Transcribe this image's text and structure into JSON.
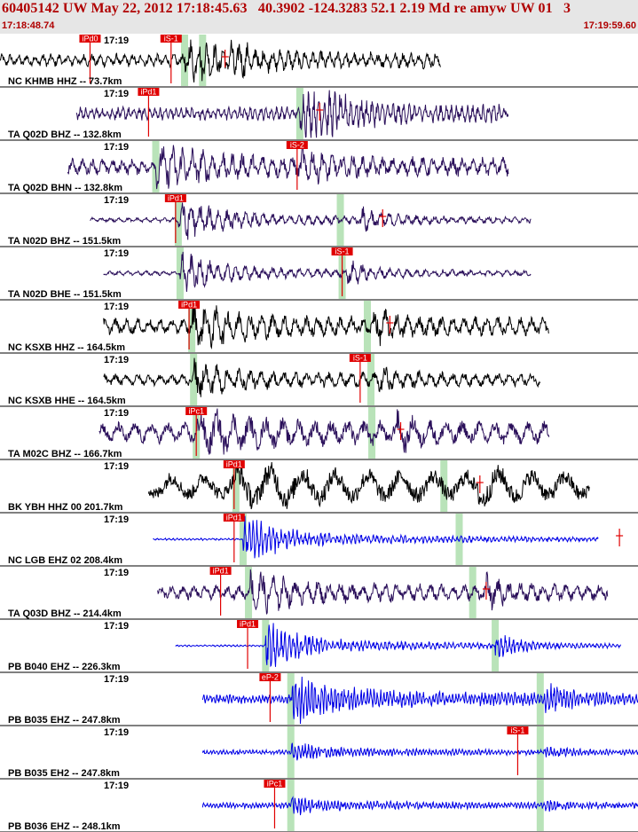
{
  "header": {
    "title": "60405142 UW May 22, 2012 17:18:45.63   40.3902 -124.3283 52.1 2.19 Md re amyw UW 01   3",
    "time_start": "17:18:48.74",
    "time_end": "17:19:59.60"
  },
  "colors": {
    "header_bg": "#e6e6e6",
    "header_text": "#b00000",
    "pick_box": "#e00000",
    "pick_line": "#e00000",
    "shade": "#b9e3b9",
    "trace_black": "#000000",
    "trace_purple": "#2a0f5a",
    "trace_blue": "#0000e6"
  },
  "chart_data": {
    "type": "line",
    "x_range_seconds": [
      0,
      70.86
    ],
    "traces": [
      {
        "label": "NC KHMB HHZ -- 73.7km",
        "minute": "17:19",
        "color": "black",
        "start": 0.0,
        "end": 49.0,
        "amp": 0.28,
        "freq": 2.2,
        "sig_amp": 0.8,
        "burst2": 25.5,
        "pick": {
          "text": "iPd0",
          "x": 10.0
        },
        "pick2": {
          "text": "iS-1",
          "x": 19.0
        },
        "shade_x": 20.5,
        "shade2_x": 22.5,
        "tick_x": 25.0,
        "tick_dir": "right"
      },
      {
        "label": "TA Q02D BHZ -- 132.8km",
        "minute": "17:19",
        "color": "purple",
        "start": 8.5,
        "end": 56.5,
        "amp": 0.3,
        "freq": 3.4,
        "sig_amp": 0.9,
        "burst2": 35.0,
        "pick": {
          "text": "iPd1",
          "x": 16.5
        },
        "pick2": null,
        "shade_x": 33.3,
        "shade2_x": null,
        "tick_x": 35.5,
        "tick_dir": "up"
      },
      {
        "label": "TA Q02D BHN -- 132.8km",
        "minute": "17:19",
        "color": "purple",
        "start": 7.5,
        "end": 56.5,
        "amp": 0.35,
        "freq": 1.8,
        "sig_amp": 0.95,
        "burst2": 33.5,
        "pick": {
          "text": "iS-2",
          "x": 33.0
        },
        "pick2": null,
        "shade_x": 17.3,
        "shade2_x": null,
        "tick_x": null,
        "tick_dir": null
      },
      {
        "label": "TA N02D BHZ -- 151.5km",
        "minute": "17:19",
        "color": "purple",
        "start": 10.0,
        "end": 59.0,
        "amp": 0.1,
        "freq": 2.0,
        "sig_amp": 0.85,
        "burst2": 40.0,
        "pick": {
          "text": "iPd1",
          "x": 19.5
        },
        "pick2": null,
        "shade_x": 19.8,
        "shade2_x": 37.8,
        "tick_x": 42.5,
        "tick_dir": "up"
      },
      {
        "label": "TA N02D BHE -- 151.5km",
        "minute": "17:19",
        "color": "purple",
        "start": 11.5,
        "end": 59.0,
        "amp": 0.1,
        "freq": 2.0,
        "sig_amp": 0.75,
        "burst2": 38.5,
        "pick": {
          "text": "iS-1",
          "x": 38.0
        },
        "pick2": null,
        "shade_x": 20.0,
        "shade2_x": 38.0,
        "tick_x": null,
        "tick_dir": null
      },
      {
        "label": "NC KSXB HHZ -- 164.5km",
        "minute": "17:19",
        "color": "black",
        "start": 11.5,
        "end": 61.0,
        "amp": 0.35,
        "freq": 1.6,
        "sig_amp": 0.8,
        "burst2": 41.5,
        "pick": {
          "text": "iPd1",
          "x": 21.0
        },
        "pick2": null,
        "shade_x": 21.3,
        "shade2_x": 40.8,
        "tick_x": 43.3,
        "tick_dir": "up"
      },
      {
        "label": "NC KSXB HHE -- 164.5km",
        "minute": "17:19",
        "color": "black",
        "start": 11.5,
        "end": 60.0,
        "amp": 0.25,
        "freq": 1.6,
        "sig_amp": 0.6,
        "burst2": 42.0,
        "pick": {
          "text": "iS-1",
          "x": 40.0
        },
        "pick2": null,
        "shade_x": 21.5,
        "shade2_x": 41.2,
        "tick_x": null,
        "tick_dir": null
      },
      {
        "label": "TA M02C BHZ -- 166.7km",
        "minute": "17:19",
        "color": "purple",
        "start": 11.0,
        "end": 61.0,
        "amp": 0.45,
        "freq": 1.1,
        "sig_amp": 0.8,
        "burst2": 44.0,
        "pick": {
          "text": "iPc1",
          "x": 21.8
        },
        "pick2": null,
        "shade_x": 21.8,
        "shade2_x": 41.3,
        "tick_x": 44.5,
        "tick_dir": "up"
      },
      {
        "label": "BK YBH HHZ 00 201.7km",
        "minute": "17:19",
        "color": "black",
        "start": 16.5,
        "end": 65.5,
        "amp": 0.6,
        "freq": 0.55,
        "sig_amp": 0.9,
        "burst2": 53.0,
        "pick": {
          "text": "iPd1",
          "x": 26.0
        },
        "pick2": null,
        "shade_x": 26.2,
        "shade2_x": 49.3,
        "tick_x": 53.3,
        "tick_dir": "up"
      },
      {
        "label": "NC LGB EHZ 02 208.4km",
        "minute": "17:19",
        "color": "blue",
        "start": 17.0,
        "end": 66.5,
        "amp": 0.05,
        "freq": 4.5,
        "sig_amp": 0.95,
        "burst2": 68.5,
        "pick": {
          "text": "iPd1",
          "x": 26.0
        },
        "pick2": null,
        "shade_x": 27.0,
        "shade2_x": 51.0,
        "tick_x": 68.8,
        "tick_dir": "up"
      },
      {
        "label": "TA Q03D BHZ -- 214.4km",
        "minute": "17:19",
        "color": "purple",
        "start": 17.5,
        "end": 67.5,
        "amp": 0.3,
        "freq": 1.6,
        "sig_amp": 0.8,
        "burst2": 54.0,
        "pick": {
          "text": "iPd1",
          "x": 24.5
        },
        "pick2": null,
        "shade_x": 27.6,
        "shade2_x": 52.5,
        "tick_x": 54.0,
        "tick_dir": "up"
      },
      {
        "label": "PB B040 EHZ -- 226.3km",
        "minute": "17:19",
        "color": "blue",
        "start": 19.5,
        "end": 69.0,
        "amp": 0.04,
        "freq": 4.5,
        "sig_amp": 0.95,
        "burst2": 55.0,
        "pick": {
          "text": "iPd1",
          "x": 27.5
        },
        "pick2": null,
        "shade_x": 29.5,
        "shade2_x": 55.0,
        "tick_x": null,
        "tick_dir": null
      },
      {
        "label": "PB B035 EHZ -- 247.8km",
        "minute": "17:19",
        "color": "blue",
        "start": 22.5,
        "end": 71.0,
        "amp": 0.2,
        "freq": 5.5,
        "sig_amp": 0.95,
        "burst2": 60.5,
        "pick": {
          "text": "eP-2",
          "x": 30.0
        },
        "pick2": null,
        "shade_x": 32.3,
        "shade2_x": 60.0,
        "tick_x": null,
        "tick_dir": null
      },
      {
        "label": "PB B035 EH2 -- 247.8km",
        "minute": "17:19",
        "color": "blue",
        "start": 22.5,
        "end": 71.0,
        "amp": 0.1,
        "freq": 5.5,
        "sig_amp": 0.3,
        "burst2": 60.5,
        "pick": {
          "text": "iS-1",
          "x": 57.5
        },
        "pick2": null,
        "shade_x": 32.3,
        "shade2_x": 60.0,
        "tick_x": null,
        "tick_dir": null
      },
      {
        "label": "PB B036 EHZ -- 248.1km",
        "minute": "17:19",
        "color": "blue",
        "start": 22.5,
        "end": 71.0,
        "amp": 0.12,
        "freq": 5.5,
        "sig_amp": 0.3,
        "burst2": 60.5,
        "pick": {
          "text": "iPc1",
          "x": 30.5
        },
        "pick2": null,
        "shade_x": 32.3,
        "shade2_x": 60.0,
        "tick_x": null,
        "tick_dir": null
      }
    ]
  }
}
